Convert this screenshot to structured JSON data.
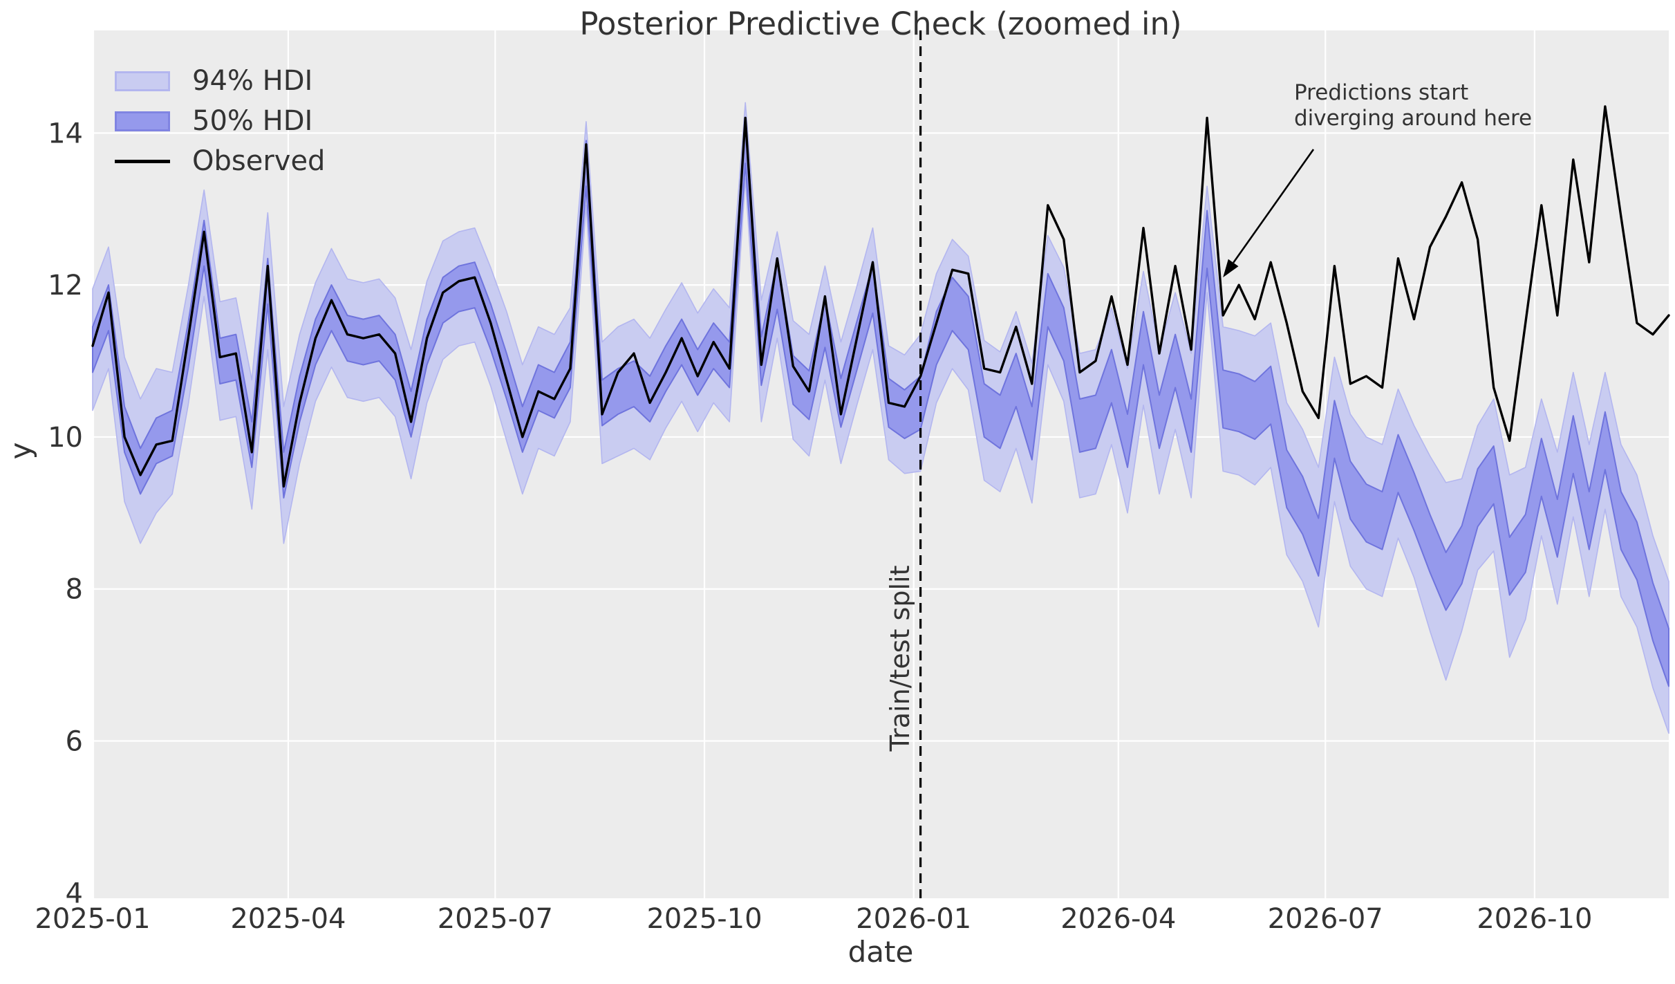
{
  "title": "Posterior Predictive Check (zoomed in)",
  "colors": {
    "figure_bg": "#ffffff",
    "axes_bg": "#ececec",
    "grid": "#ffffff",
    "hdi94_fill": "#c9ccf1",
    "hdi94_edge": "#b3b6ef",
    "hdi50_fill": "#9599ec",
    "hdi50_edge": "#6f74dd",
    "observed_line": "#000000",
    "split_line": "#000000",
    "text": "#333333"
  },
  "chart_data": {
    "type": "line",
    "title": "Posterior Predictive Check (zoomed in)",
    "xlabel": "date",
    "ylabel": "y",
    "legend": [
      {
        "label": "94% HDI",
        "kind": "band-light"
      },
      {
        "label": "50% HDI",
        "kind": "band-dark"
      },
      {
        "label": "Observed",
        "kind": "line"
      }
    ],
    "legend_position": "upper left",
    "grid": true,
    "x_start": "2025-01-05",
    "x_step_days": 7,
    "n_points": 100,
    "ylim": [
      3.93,
      15.35
    ],
    "yticks": [
      4,
      6,
      8,
      10,
      12,
      14
    ],
    "xticks": [
      {
        "label": "2025-01",
        "date": "2025-01-05"
      },
      {
        "label": "2025-04",
        "date": "2025-04-01"
      },
      {
        "label": "2025-07",
        "date": "2025-07-01"
      },
      {
        "label": "2025-10",
        "date": "2025-10-01"
      },
      {
        "label": "2026-01",
        "date": "2026-01-01"
      },
      {
        "label": "2026-04",
        "date": "2026-04-01"
      },
      {
        "label": "2026-07",
        "date": "2026-07-01"
      },
      {
        "label": "2026-10",
        "date": "2026-10-01"
      }
    ],
    "split": {
      "date": "2026-01-04",
      "label": "Train/test split"
    },
    "annotation": {
      "line1": "Predictions start",
      "line2": "diverging around here",
      "arrow_tip_date": "2026-05-17",
      "arrow_tip_y": 12.1
    },
    "observed": [
      11.2,
      11.9,
      10.0,
      9.5,
      9.9,
      9.95,
      11.3,
      12.7,
      11.05,
      11.1,
      9.8,
      12.25,
      9.35,
      10.45,
      11.3,
      11.8,
      11.35,
      11.3,
      11.35,
      11.1,
      10.2,
      11.3,
      11.9,
      12.05,
      12.1,
      11.5,
      10.75,
      10.0,
      10.6,
      10.5,
      10.9,
      13.85,
      10.3,
      10.85,
      11.1,
      10.45,
      10.85,
      11.3,
      10.8,
      11.25,
      10.9,
      14.2,
      10.95,
      12.35,
      10.93,
      10.6,
      11.85,
      10.3,
      11.3,
      12.3,
      10.45,
      10.4,
      10.8,
      11.5,
      12.2,
      12.15,
      10.9,
      10.85,
      11.45,
      10.7,
      13.05,
      12.6,
      10.85,
      11.0,
      11.85,
      10.95,
      12.75,
      11.1,
      12.25,
      11.15,
      14.2,
      11.6,
      12.0,
      11.55,
      12.3,
      11.5,
      10.6,
      10.25,
      12.25,
      10.7,
      10.8,
      10.65,
      12.35,
      11.55,
      12.5,
      12.9,
      13.35,
      12.6,
      10.65,
      9.95,
      11.5,
      13.05,
      11.6,
      13.65,
      12.3,
      14.35,
      12.9,
      11.5,
      11.35,
      11.6
    ],
    "predicted_median": [
      11.15,
      11.7,
      10.1,
      9.55,
      9.95,
      10.05,
      11.2,
      12.55,
      11.0,
      11.05,
      9.9,
      12.05,
      9.5,
      10.5,
      11.25,
      11.7,
      11.3,
      11.25,
      11.3,
      11.05,
      10.3,
      11.25,
      11.8,
      11.95,
      12.0,
      11.45,
      10.8,
      10.1,
      10.65,
      10.55,
      10.95,
      13.6,
      10.45,
      10.6,
      10.7,
      10.5,
      10.9,
      11.25,
      10.85,
      11.2,
      10.95,
      13.9,
      11.0,
      12.0,
      10.75,
      10.55,
      11.5,
      10.45,
      11.2,
      11.95,
      10.45,
      10.3,
      10.45,
      11.3,
      11.75,
      11.5,
      10.35,
      10.2,
      10.75,
      10.05,
      11.8,
      11.35,
      10.15,
      10.2,
      10.8,
      9.95,
      11.3,
      10.2,
      11.0,
      10.15,
      12.6,
      10.5,
      10.45,
      10.35,
      10.55,
      9.45,
      9.1,
      8.55,
      10.1,
      9.3,
      9.0,
      8.9,
      9.65,
      9.15,
      8.6,
      8.1,
      8.45,
      9.2,
      9.5,
      8.3,
      8.6,
      9.6,
      8.8,
      9.9,
      8.9,
      9.95,
      8.9,
      8.5,
      7.7,
      7.1
    ],
    "hdi50_half_width": [
      0.3,
      0.3,
      0.3,
      0.3,
      0.3,
      0.3,
      0.3,
      0.3,
      0.3,
      0.3,
      0.3,
      0.3,
      0.3,
      0.3,
      0.3,
      0.3,
      0.3,
      0.3,
      0.3,
      0.3,
      0.3,
      0.3,
      0.3,
      0.3,
      0.3,
      0.3,
      0.3,
      0.3,
      0.3,
      0.3,
      0.3,
      0.3,
      0.3,
      0.3,
      0.3,
      0.3,
      0.3,
      0.3,
      0.3,
      0.3,
      0.3,
      0.3,
      0.32,
      0.32,
      0.32,
      0.32,
      0.32,
      0.32,
      0.32,
      0.32,
      0.32,
      0.32,
      0.35,
      0.35,
      0.35,
      0.35,
      0.35,
      0.35,
      0.35,
      0.35,
      0.35,
      0.35,
      0.35,
      0.35,
      0.35,
      0.35,
      0.35,
      0.35,
      0.35,
      0.35,
      0.38,
      0.38,
      0.38,
      0.38,
      0.38,
      0.38,
      0.38,
      0.38,
      0.38,
      0.38,
      0.38,
      0.38,
      0.38,
      0.38,
      0.38,
      0.38,
      0.38,
      0.38,
      0.38,
      0.38,
      0.38,
      0.38,
      0.38,
      0.38,
      0.38,
      0.38,
      0.38,
      0.38,
      0.38,
      0.38
    ],
    "hdi94_half_width": [
      0.8,
      0.8,
      0.95,
      0.95,
      0.95,
      0.8,
      0.78,
      0.7,
      0.78,
      0.78,
      0.85,
      0.9,
      0.9,
      0.85,
      0.78,
      0.78,
      0.78,
      0.78,
      0.78,
      0.78,
      0.85,
      0.8,
      0.78,
      0.75,
      0.75,
      0.78,
      0.85,
      0.85,
      0.8,
      0.8,
      0.75,
      0.55,
      0.8,
      0.85,
      0.85,
      0.8,
      0.78,
      0.78,
      0.78,
      0.75,
      0.75,
      0.5,
      0.8,
      0.7,
      0.78,
      0.8,
      0.75,
      0.8,
      0.78,
      0.8,
      0.75,
      0.78,
      0.9,
      0.85,
      0.85,
      0.88,
      0.92,
      0.92,
      0.9,
      0.92,
      0.85,
      0.88,
      0.95,
      0.95,
      0.9,
      0.95,
      0.88,
      0.95,
      0.9,
      0.95,
      0.7,
      0.95,
      0.95,
      0.98,
      0.95,
      1.0,
      1.0,
      1.05,
      0.95,
      1.0,
      1.0,
      1.0,
      0.98,
      1.0,
      1.15,
      1.3,
      1.0,
      0.95,
      1.0,
      1.2,
      1.0,
      0.9,
      1.0,
      0.95,
      1.0,
      0.9,
      1.0,
      1.0,
      1.0,
      1.0
    ]
  }
}
